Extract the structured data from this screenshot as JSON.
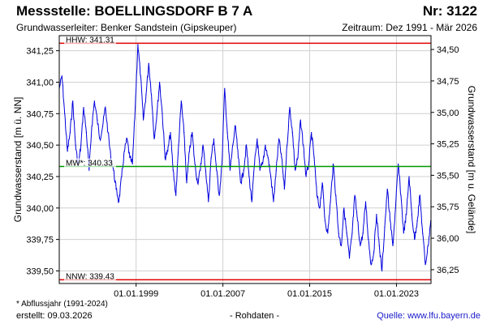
{
  "header": {
    "title": "Messstelle: BOELLINGSDORF B 7 A",
    "station_nr": "Nr: 3122",
    "aquifer": "Grundwasserleiter:   Benker Sandstein (Gipskeuper)",
    "period": "Zeitraum: Dez 1991 - Mär 2026"
  },
  "footer": {
    "footnote": "* Abflussjahr (1991-2024)",
    "created": "erstellt:  09.03.2026",
    "data_type": "- Rohdaten -",
    "source": "Quelle: www.lfu.bayern.de"
  },
  "colors": {
    "series": "#0000dd",
    "hhw": "#e00000",
    "nnw": "#e00000",
    "mw": "#009900",
    "grid": "#d0d0d0"
  },
  "chart_data": {
    "type": "line",
    "ylabel": "Grundwasserstand [m ü. NN]",
    "ylabel_right": "Grundwasserstand [m u. Gelände]",
    "ylim": [
      339.4,
      341.37
    ],
    "xlim": [
      "1991-12-01",
      "2026-03-09"
    ],
    "y_ticks": [
      339.5,
      339.75,
      340.0,
      340.25,
      340.5,
      340.75,
      341.0,
      341.25
    ],
    "y_tick_labels": [
      "339,50",
      "339,75",
      "340,00",
      "340,25",
      "340,50",
      "340,75",
      "341,00",
      "341,25"
    ],
    "right_ticks": [
      {
        "at": 341.26,
        "label": "34,50"
      },
      {
        "at": 341.01,
        "label": "34,75"
      },
      {
        "at": 340.76,
        "label": "35,00"
      },
      {
        "at": 340.51,
        "label": "35,25"
      },
      {
        "at": 340.26,
        "label": "35,50"
      },
      {
        "at": 340.01,
        "label": "35,75"
      },
      {
        "at": 339.76,
        "label": "36,00"
      },
      {
        "at": 339.51,
        "label": "36,25"
      }
    ],
    "x_ticks": [
      "1999-01-01",
      "2007-01-01",
      "2015-01-01",
      "2023-01-01"
    ],
    "x_tick_labels": [
      "01.01.1999",
      "01.01.2007",
      "01.01.2015",
      "01.01.2023"
    ],
    "reference_lines": [
      {
        "name": "HHW",
        "label": "HHW: 341.31",
        "value": 341.31
      },
      {
        "name": "MW",
        "label": "MW*: 340.33",
        "value": 340.33
      },
      {
        "name": "NNW",
        "label": "NNW: 339.43",
        "value": 339.43
      }
    ],
    "grid": true,
    "series": [
      {
        "x": [
          "1991-12-01",
          "1992-03-01",
          "1992-06-01",
          "1992-09-01",
          "1992-12-01",
          "1993-03-01",
          "1993-06-01",
          "1993-09-01",
          "1993-12-01",
          "1994-03-01",
          "1994-06-01",
          "1994-09-01",
          "1994-12-01",
          "1995-03-01",
          "1995-06-01",
          "1995-09-01",
          "1995-12-01",
          "1996-03-01",
          "1996-06-01",
          "1996-09-01",
          "1996-12-01",
          "1997-03-01",
          "1997-06-01",
          "1997-09-01",
          "1997-12-01",
          "1998-03-01",
          "1998-06-01",
          "1998-09-01",
          "1998-12-01",
          "1999-03-01",
          "1999-06-01",
          "1999-09-01",
          "1999-12-01",
          "2000-03-01",
          "2000-06-01",
          "2000-09-01",
          "2000-12-01",
          "2001-03-01",
          "2001-06-01",
          "2001-09-01",
          "2001-12-01",
          "2002-03-01",
          "2002-06-01",
          "2002-09-01",
          "2002-12-01",
          "2003-03-01",
          "2003-06-01",
          "2003-09-01",
          "2003-12-01",
          "2004-03-01",
          "2004-06-01",
          "2004-09-01",
          "2004-12-01",
          "2005-03-01",
          "2005-06-01",
          "2005-09-01",
          "2005-12-01",
          "2006-03-01",
          "2006-06-01",
          "2006-09-01",
          "2006-12-01",
          "2007-03-01",
          "2007-06-01",
          "2007-09-01",
          "2007-12-01",
          "2008-03-01",
          "2008-06-01",
          "2008-09-01",
          "2008-12-01",
          "2009-03-01",
          "2009-06-01",
          "2009-09-01",
          "2009-12-01",
          "2010-03-01",
          "2010-06-01",
          "2010-09-01",
          "2010-12-01",
          "2011-03-01",
          "2011-06-01",
          "2011-09-01",
          "2011-12-01",
          "2012-03-01",
          "2012-06-01",
          "2012-09-01",
          "2012-12-01",
          "2013-03-01",
          "2013-06-01",
          "2013-09-01",
          "2013-12-01",
          "2014-03-01",
          "2014-06-01",
          "2014-09-01",
          "2014-12-01",
          "2015-03-01",
          "2015-06-01",
          "2015-09-01",
          "2015-12-01",
          "2016-03-01",
          "2016-06-01",
          "2016-09-01",
          "2016-12-01",
          "2017-03-01",
          "2017-06-01",
          "2017-09-01",
          "2017-12-01",
          "2018-03-01",
          "2018-06-01",
          "2018-09-01",
          "2018-12-01",
          "2019-03-01",
          "2019-06-01",
          "2019-09-01",
          "2019-12-01",
          "2020-03-01",
          "2020-06-01",
          "2020-09-01",
          "2020-12-01",
          "2021-03-01",
          "2021-06-01",
          "2021-09-01",
          "2021-12-01",
          "2022-03-01",
          "2022-06-01",
          "2022-09-01",
          "2022-12-01",
          "2023-03-01",
          "2023-06-01",
          "2023-09-01",
          "2023-12-01",
          "2024-03-01",
          "2024-06-01",
          "2024-09-01",
          "2024-12-01",
          "2025-03-01",
          "2025-06-01",
          "2025-09-01",
          "2025-12-01",
          "2026-03-01"
        ],
        "values": [
          340.95,
          341.05,
          340.75,
          340.45,
          340.6,
          340.85,
          340.5,
          340.33,
          340.5,
          340.8,
          340.6,
          340.3,
          340.65,
          340.85,
          340.7,
          340.55,
          340.65,
          340.8,
          340.6,
          340.4,
          340.3,
          340.15,
          340.05,
          340.25,
          340.45,
          340.55,
          340.4,
          340.35,
          340.8,
          341.3,
          341.05,
          340.7,
          340.9,
          341.15,
          340.9,
          340.55,
          340.75,
          341.0,
          340.75,
          340.4,
          340.45,
          340.6,
          340.3,
          340.1,
          340.5,
          340.85,
          340.6,
          340.2,
          340.45,
          340.6,
          340.35,
          340.2,
          340.3,
          340.5,
          340.3,
          340.05,
          340.4,
          340.55,
          340.3,
          340.1,
          340.35,
          340.95,
          340.6,
          340.3,
          340.5,
          340.65,
          340.4,
          340.2,
          340.3,
          340.5,
          340.25,
          340.05,
          340.35,
          340.55,
          340.3,
          340.35,
          340.5,
          340.4,
          340.25,
          340.05,
          340.3,
          340.55,
          340.4,
          340.15,
          340.5,
          340.8,
          340.6,
          340.3,
          340.4,
          340.7,
          340.5,
          340.25,
          340.35,
          340.6,
          340.4,
          340.1,
          340.0,
          340.2,
          339.9,
          339.8,
          340.05,
          340.35,
          340.1,
          339.8,
          339.7,
          340.0,
          339.8,
          339.6,
          339.8,
          340.1,
          339.9,
          339.7,
          339.8,
          340.05,
          339.75,
          339.55,
          339.65,
          339.95,
          339.7,
          339.5,
          339.85,
          340.15,
          339.9,
          339.7,
          340.0,
          340.35,
          340.1,
          339.8,
          339.95,
          340.25,
          339.95,
          339.75,
          339.9,
          340.1,
          339.8,
          339.55,
          339.7,
          339.9
        ]
      }
    ]
  }
}
